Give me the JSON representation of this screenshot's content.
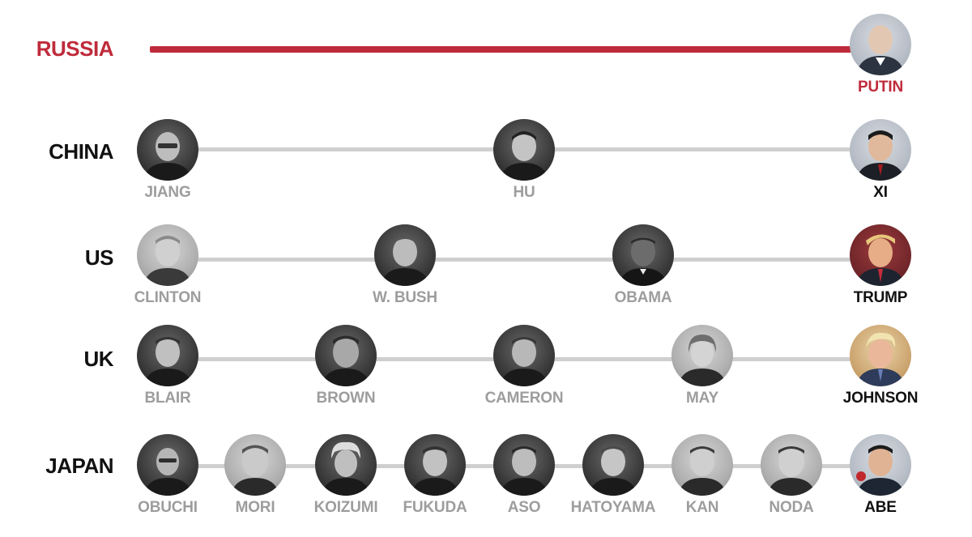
{
  "colors": {
    "highlight": "#bf2b3b",
    "track": "#cfcfcf",
    "current_name": "#111111",
    "past_name": "#9d9d9d"
  },
  "rows": [
    {
      "country": "RUSSIA",
      "highlight": true,
      "leaders": [
        {
          "name": "PUTIN",
          "current": true
        }
      ]
    },
    {
      "country": "CHINA",
      "highlight": false,
      "leaders": [
        {
          "name": "JIANG",
          "current": false
        },
        {
          "name": "HU",
          "current": false
        },
        {
          "name": "XI",
          "current": true
        }
      ]
    },
    {
      "country": "US",
      "highlight": false,
      "leaders": [
        {
          "name": "CLINTON",
          "current": false
        },
        {
          "name": "W. BUSH",
          "current": false
        },
        {
          "name": "OBAMA",
          "current": false
        },
        {
          "name": "TRUMP",
          "current": true
        }
      ]
    },
    {
      "country": "UK",
      "highlight": false,
      "leaders": [
        {
          "name": "BLAIR",
          "current": false
        },
        {
          "name": "BROWN",
          "current": false
        },
        {
          "name": "CAMERON",
          "current": false
        },
        {
          "name": "MAY",
          "current": false
        },
        {
          "name": "JOHNSON",
          "current": true
        }
      ]
    },
    {
      "country": "JAPAN",
      "highlight": false,
      "leaders": [
        {
          "name": "OBUCHI",
          "current": false
        },
        {
          "name": "MORI",
          "current": false
        },
        {
          "name": "KOIZUMI",
          "current": false
        },
        {
          "name": "FUKUDA",
          "current": false
        },
        {
          "name": "ASO",
          "current": false
        },
        {
          "name": "HATOYAMA",
          "current": false
        },
        {
          "name": "KAN",
          "current": false
        },
        {
          "name": "NODA",
          "current": false
        },
        {
          "name": "ABE",
          "current": true
        }
      ]
    }
  ]
}
